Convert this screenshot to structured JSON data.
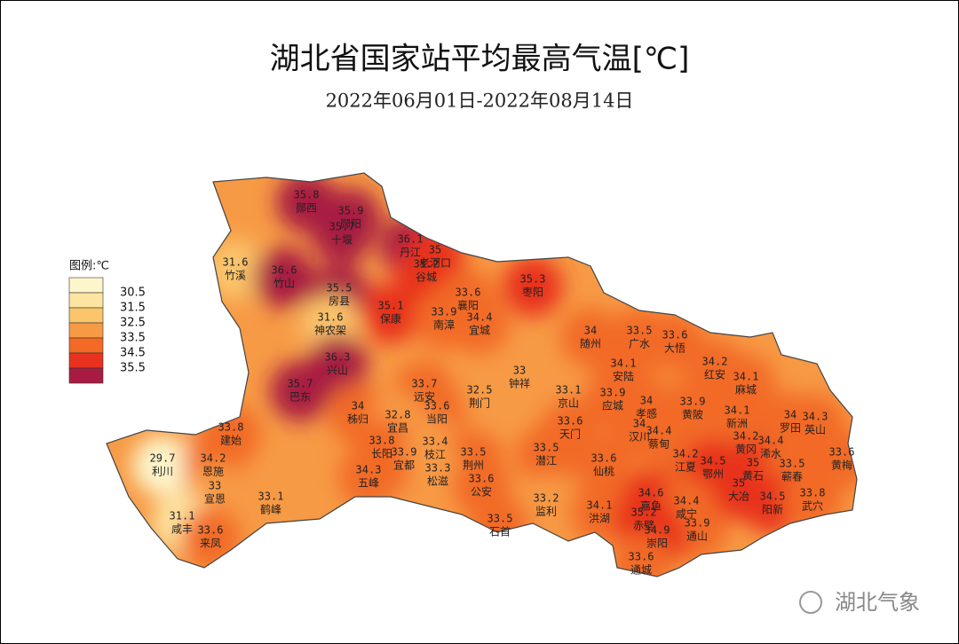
{
  "title": "湖北省国家站平均最高气温[℃]",
  "subtitle": "2022年06月01日-2022年08月14日",
  "legend": {
    "title": "图例:℃",
    "thresholds": [
      30.5,
      31.5,
      32.5,
      33.5,
      34.5,
      35.5
    ],
    "colors": [
      "#fdf6cc",
      "#fde4a0",
      "#fbc56c",
      "#f79a45",
      "#f26a25",
      "#e8321f",
      "#a81c43"
    ]
  },
  "stations": [
    {
      "name": "郧西",
      "value": 35.8
    },
    {
      "name": "郧阳",
      "value": 35.9
    },
    {
      "name": "十堰",
      "value": 35.7
    },
    {
      "name": "丹江",
      "value": 36.1
    },
    {
      "name": "老河口",
      "value": 35
    },
    {
      "name": "谷城",
      "value": 35.2
    },
    {
      "name": "竹溪",
      "value": 31.6
    },
    {
      "name": "竹山",
      "value": 36.6
    },
    {
      "name": "房县",
      "value": 35.5
    },
    {
      "name": "神农架",
      "value": 31.6
    },
    {
      "name": "保康",
      "value": 35.1
    },
    {
      "name": "兴山",
      "value": 36.3
    },
    {
      "name": "巴东",
      "value": 35.7
    },
    {
      "name": "襄阳",
      "value": 33.6
    },
    {
      "name": "枣阳",
      "value": 35.3
    },
    {
      "name": "南漳",
      "value": 33.9
    },
    {
      "name": "宜城",
      "value": 34.4
    },
    {
      "name": "随州",
      "value": 34
    },
    {
      "name": "广水",
      "value": 33.5
    },
    {
      "name": "大悟",
      "value": 33.6
    },
    {
      "name": "钟祥",
      "value": 33
    },
    {
      "name": "荆门",
      "value": 32.5
    },
    {
      "name": "京山",
      "value": 33.1
    },
    {
      "name": "安陆",
      "value": 34.1
    },
    {
      "name": "红安",
      "value": 34.2
    },
    {
      "name": "麻城",
      "value": 34.1
    },
    {
      "name": "应城",
      "value": 33.9
    },
    {
      "name": "孝感",
      "value": 34
    },
    {
      "name": "黄陂",
      "value": 33.9
    },
    {
      "name": "新洲",
      "value": 34.1
    },
    {
      "name": "远安",
      "value": 33.7
    },
    {
      "name": "当阳",
      "value": 33.6
    },
    {
      "name": "建始",
      "value": 33.8
    },
    {
      "name": "秭归",
      "value": 34
    },
    {
      "name": "宜昌",
      "value": 32.8
    },
    {
      "name": "天门",
      "value": 33.6
    },
    {
      "name": "汉川",
      "value": 34
    },
    {
      "name": "蔡甸",
      "value": 34.4
    },
    {
      "name": "罗田",
      "value": 34
    },
    {
      "name": "英山",
      "value": 34.3
    },
    {
      "name": "黄冈",
      "value": 34.2
    },
    {
      "name": "浠水",
      "value": 34.4
    },
    {
      "name": "利川",
      "value": 29.7
    },
    {
      "name": "恩施",
      "value": 34.2
    },
    {
      "name": "长阳",
      "value": 33.8
    },
    {
      "name": "宜都",
      "value": 33.9
    },
    {
      "name": "枝江",
      "value": 33.4
    },
    {
      "name": "荆州",
      "value": 33.5
    },
    {
      "name": "潜江",
      "value": 33.5
    },
    {
      "name": "仙桃",
      "value": 33.6
    },
    {
      "name": "江夏",
      "value": 34.2
    },
    {
      "name": "鄂州",
      "value": 34.5
    },
    {
      "name": "黄石",
      "value": 35
    },
    {
      "name": "蕲春",
      "value": 33.5
    },
    {
      "name": "黄梅",
      "value": 33.6
    },
    {
      "name": "宣恩",
      "value": 33
    },
    {
      "name": "五峰",
      "value": 34.3
    },
    {
      "name": "松滋",
      "value": 33.3
    },
    {
      "name": "公安",
      "value": 33.6
    },
    {
      "name": "大冶",
      "value": 35
    },
    {
      "name": "阳新",
      "value": 34.5
    },
    {
      "name": "武穴",
      "value": 33.8
    },
    {
      "name": "鹤峰",
      "value": 33.1
    },
    {
      "name": "监利",
      "value": 33.2
    },
    {
      "name": "嘉鱼",
      "value": 34.6
    },
    {
      "name": "咸宁",
      "value": 34.4
    },
    {
      "name": "洪湖",
      "value": 34.1
    },
    {
      "name": "咸丰",
      "value": 31.1
    },
    {
      "name": "石首",
      "value": 33.5
    },
    {
      "name": "赤壁",
      "value": 35.2
    },
    {
      "name": "通山",
      "value": 33.9
    },
    {
      "name": "来凤",
      "value": 33.6
    },
    {
      "name": "崇阳",
      "value": 34.9
    },
    {
      "name": "通城",
      "value": 33.6
    }
  ],
  "watermark": "湖北气象"
}
